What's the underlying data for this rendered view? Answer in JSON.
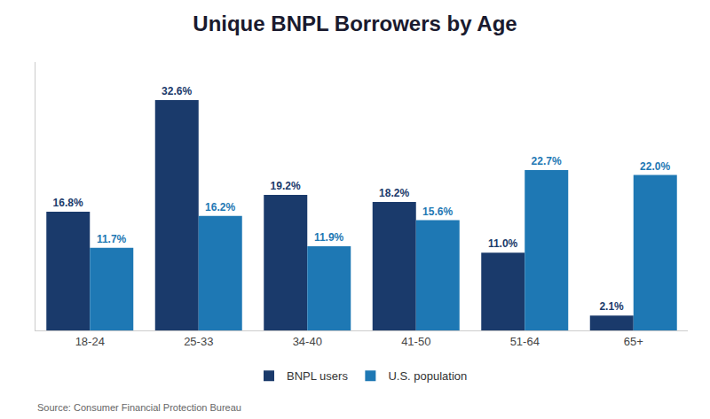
{
  "chart_data": {
    "type": "bar",
    "title": "Unique BNPL Borrowers by Age",
    "categories": [
      "18-24",
      "25-33",
      "34-40",
      "41-50",
      "51-64",
      "65+"
    ],
    "series": [
      {
        "name": "BNPL users",
        "color": "#1a3a6b",
        "values": [
          16.8,
          32.6,
          19.2,
          18.2,
          11.0,
          2.1
        ],
        "value_labels": [
          "16.8%",
          "32.6%",
          "19.2%",
          "18.2%",
          "11.0%",
          "2.1%"
        ]
      },
      {
        "name": "U.S. population",
        "color": "#1e78b4",
        "values": [
          11.7,
          16.2,
          11.9,
          15.6,
          22.7,
          22.0
        ],
        "value_labels": [
          "11.7%",
          "16.2%",
          "11.9%",
          "15.6%",
          "22.7%",
          "22.0%"
        ]
      }
    ],
    "ylim": [
      0,
      38
    ],
    "grid": false,
    "legend": "bottom",
    "data_labels": true,
    "tick_labels": "x",
    "annotations": [
      "Source: Consumer Financial Protection Bureau"
    ]
  }
}
